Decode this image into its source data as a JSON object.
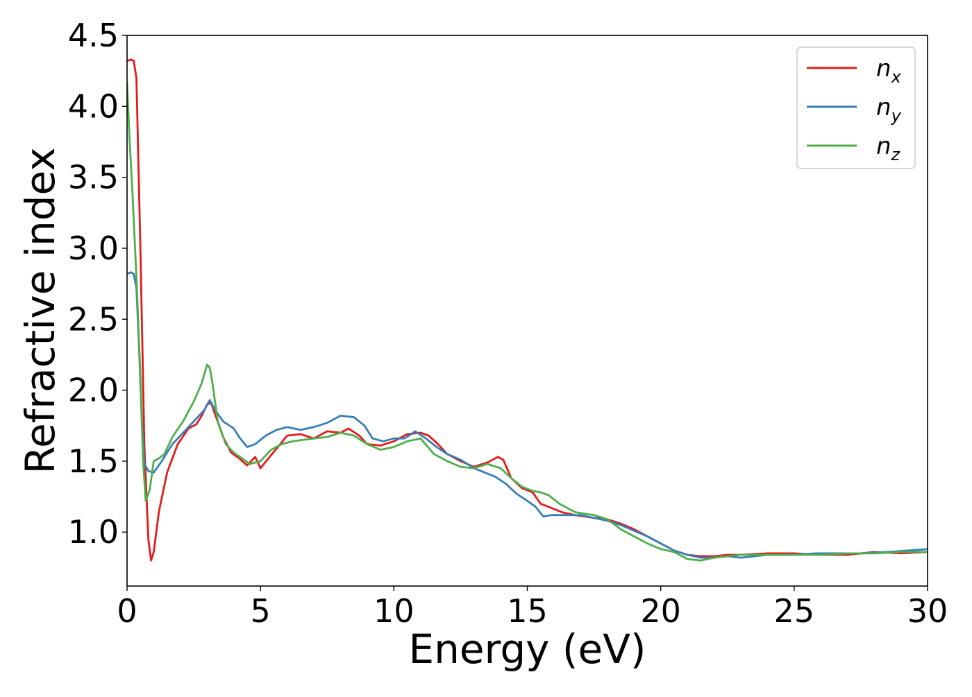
{
  "chart_data": {
    "type": "line",
    "title": "",
    "xlabel": "Energy (eV)",
    "ylabel": "Refractive index",
    "xlim": [
      0,
      30
    ],
    "ylim": [
      0.62,
      4.5
    ],
    "xticks": [
      0,
      5,
      10,
      15,
      20,
      25,
      30
    ],
    "xtick_labels": [
      "0",
      "5",
      "10",
      "15",
      "20",
      "25",
      "30"
    ],
    "yticks": [
      1.0,
      1.5,
      2.0,
      2.5,
      3.0,
      3.5,
      4.0,
      4.5
    ],
    "ytick_labels": [
      "1.0",
      "1.5",
      "2.0",
      "2.5",
      "3.0",
      "3.5",
      "4.0",
      "4.5"
    ],
    "grid": false,
    "legend": {
      "placement": "top-right"
    },
    "series": [
      {
        "name": "n",
        "subscript": "x",
        "color": "#e41a1c",
        "x": [
          0,
          0.15,
          0.25,
          0.35,
          0.5,
          0.65,
          0.8,
          0.9,
          1.0,
          1.2,
          1.5,
          1.9,
          2.3,
          2.6,
          2.8,
          3.0,
          3.15,
          3.3,
          3.6,
          3.9,
          4.2,
          4.5,
          4.8,
          5.0,
          5.3,
          5.7,
          6.0,
          6.5,
          7.0,
          7.5,
          8.0,
          8.3,
          8.7,
          9.0,
          9.5,
          10.0,
          10.5,
          11.0,
          11.3,
          11.6,
          12.0,
          12.5,
          13.0,
          13.5,
          13.9,
          14.1,
          14.4,
          14.8,
          15.2,
          15.5,
          15.9,
          16.3,
          16.8,
          17.5,
          18.0,
          18.5,
          19.0,
          19.5,
          20.0,
          20.5,
          21.0,
          21.5,
          22.0,
          22.5,
          23.0,
          24.0,
          25.0,
          26.0,
          27.0,
          28.0,
          29.0,
          30.0
        ],
        "values": [
          4.32,
          4.33,
          4.32,
          4.2,
          3.0,
          1.6,
          0.95,
          0.8,
          0.86,
          1.15,
          1.42,
          1.62,
          1.73,
          1.76,
          1.82,
          1.9,
          1.91,
          1.83,
          1.67,
          1.56,
          1.52,
          1.47,
          1.53,
          1.45,
          1.52,
          1.61,
          1.68,
          1.69,
          1.66,
          1.71,
          1.7,
          1.73,
          1.68,
          1.62,
          1.61,
          1.64,
          1.69,
          1.7,
          1.68,
          1.63,
          1.55,
          1.5,
          1.46,
          1.49,
          1.53,
          1.51,
          1.38,
          1.31,
          1.28,
          1.2,
          1.17,
          1.14,
          1.12,
          1.1,
          1.09,
          1.06,
          1.02,
          0.97,
          0.92,
          0.87,
          0.84,
          0.83,
          0.83,
          0.84,
          0.84,
          0.85,
          0.85,
          0.84,
          0.84,
          0.86,
          0.85,
          0.86
        ]
      },
      {
        "name": "n",
        "subscript": "y",
        "color": "#377eb8",
        "x": [
          0,
          0.15,
          0.25,
          0.35,
          0.45,
          0.55,
          0.65,
          0.8,
          1.0,
          1.3,
          1.7,
          2.2,
          2.6,
          2.9,
          3.1,
          3.3,
          3.6,
          4.0,
          4.2,
          4.5,
          4.8,
          5.2,
          5.6,
          6.0,
          6.5,
          7.0,
          7.5,
          8.0,
          8.5,
          8.9,
          9.2,
          9.6,
          10.0,
          10.4,
          10.8,
          11.2,
          11.6,
          12.0,
          12.5,
          13.0,
          13.4,
          13.8,
          14.2,
          14.6,
          15.0,
          15.3,
          15.6,
          15.9,
          16.4,
          17.0,
          17.5,
          18.0,
          18.5,
          19.0,
          19.5,
          20.0,
          20.5,
          21.0,
          21.5,
          22.0,
          22.5,
          23.0,
          24.0,
          25.0,
          25.8,
          26.5,
          27.5,
          28.5,
          29.3,
          30.0
        ],
        "values": [
          2.82,
          2.83,
          2.82,
          2.72,
          2.3,
          1.8,
          1.48,
          1.43,
          1.42,
          1.5,
          1.62,
          1.72,
          1.8,
          1.86,
          1.93,
          1.86,
          1.78,
          1.73,
          1.67,
          1.6,
          1.62,
          1.68,
          1.72,
          1.74,
          1.72,
          1.74,
          1.77,
          1.82,
          1.81,
          1.75,
          1.66,
          1.64,
          1.66,
          1.66,
          1.71,
          1.66,
          1.6,
          1.55,
          1.51,
          1.45,
          1.42,
          1.39,
          1.34,
          1.27,
          1.22,
          1.18,
          1.11,
          1.12,
          1.12,
          1.12,
          1.1,
          1.08,
          1.05,
          1.01,
          0.97,
          0.92,
          0.87,
          0.84,
          0.82,
          0.82,
          0.83,
          0.82,
          0.84,
          0.84,
          0.85,
          0.85,
          0.85,
          0.86,
          0.87,
          0.88
        ]
      },
      {
        "name": "n",
        "subscript": "z",
        "color": "#4daf4a",
        "x": [
          0,
          0.1,
          0.2,
          0.35,
          0.5,
          0.6,
          0.7,
          0.85,
          1.0,
          1.2,
          1.4,
          1.7,
          2.1,
          2.5,
          2.8,
          3.0,
          3.1,
          3.2,
          3.4,
          3.7,
          4.0,
          4.3,
          4.6,
          5.0,
          5.4,
          5.8,
          6.2,
          6.6,
          7.0,
          7.5,
          8.0,
          8.5,
          9.0,
          9.5,
          10.0,
          10.5,
          11.0,
          11.5,
          12.0,
          12.5,
          13.0,
          13.5,
          14.0,
          14.4,
          14.8,
          15.2,
          15.5,
          15.8,
          16.2,
          16.8,
          17.5,
          18.0,
          18.5,
          19.0,
          19.5,
          20.0,
          20.5,
          21.0,
          21.5,
          22.0,
          23.0,
          24.0,
          25.0,
          26.0,
          27.0,
          28.0,
          29.0,
          30.0
        ],
        "values": [
          4.17,
          3.75,
          3.4,
          2.8,
          2.1,
          1.5,
          1.22,
          1.3,
          1.5,
          1.52,
          1.55,
          1.67,
          1.78,
          1.92,
          2.05,
          2.18,
          2.16,
          2.05,
          1.78,
          1.62,
          1.56,
          1.52,
          1.48,
          1.5,
          1.58,
          1.62,
          1.64,
          1.65,
          1.66,
          1.67,
          1.7,
          1.68,
          1.62,
          1.58,
          1.6,
          1.64,
          1.66,
          1.55,
          1.5,
          1.46,
          1.45,
          1.48,
          1.45,
          1.38,
          1.32,
          1.29,
          1.28,
          1.26,
          1.2,
          1.14,
          1.12,
          1.09,
          1.02,
          0.97,
          0.92,
          0.88,
          0.86,
          0.81,
          0.8,
          0.82,
          0.84,
          0.84,
          0.84,
          0.84,
          0.85,
          0.85,
          0.86,
          0.86
        ]
      }
    ]
  }
}
